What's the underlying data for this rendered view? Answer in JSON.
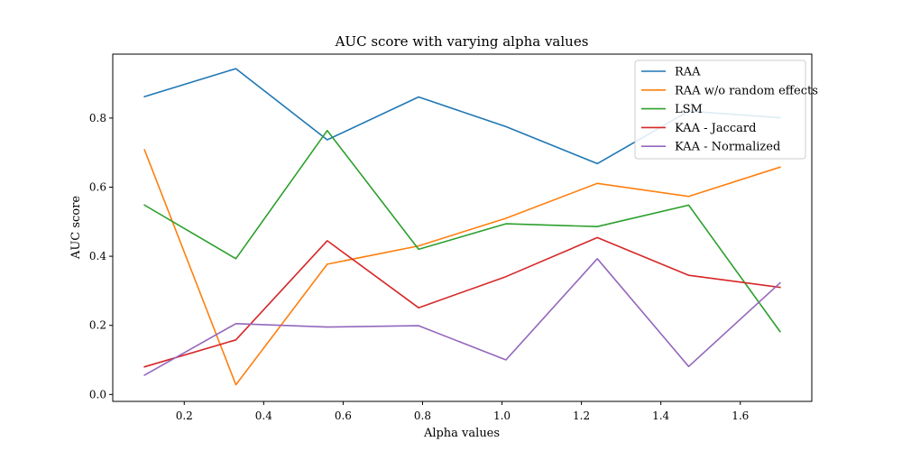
{
  "chart_data": {
    "type": "line",
    "title": "AUC score with varying alpha values",
    "xlabel": "Alpha values",
    "ylabel": "AUC score",
    "xlim": [
      0.02,
      1.78
    ],
    "ylim": [
      -0.02,
      0.985
    ],
    "xticks": [
      0.2,
      0.4,
      0.6,
      0.8,
      1.0,
      1.2,
      1.4,
      1.6
    ],
    "xtick_labels": [
      "0.2",
      "0.4",
      "0.6",
      "0.8",
      "1.0",
      "1.2",
      "1.4",
      "1.6"
    ],
    "yticks": [
      0.0,
      0.2,
      0.4,
      0.6,
      0.8
    ],
    "ytick_labels": [
      "0.0",
      "0.2",
      "0.4",
      "0.6",
      "0.8"
    ],
    "grid": false,
    "legend_position": "top-right",
    "x": [
      0.1,
      0.33,
      0.56,
      0.79,
      1.01,
      1.24,
      1.47,
      1.7
    ],
    "series": [
      {
        "name": "RAA",
        "color": "#1f77b4",
        "values": [
          0.862,
          0.943,
          0.737,
          0.861,
          0.775,
          0.668,
          0.82,
          0.801
        ]
      },
      {
        "name": "RAA w/o random effects",
        "color": "#ff7f0e",
        "values": [
          0.708,
          0.028,
          0.377,
          0.43,
          0.51,
          0.611,
          0.573,
          0.658
        ]
      },
      {
        "name": "LSM",
        "color": "#2ca02c",
        "values": [
          0.548,
          0.393,
          0.764,
          0.42,
          0.494,
          0.486,
          0.548,
          0.182
        ]
      },
      {
        "name": "KAA - Jaccard",
        "color": "#d62728",
        "values": [
          0.08,
          0.158,
          0.445,
          0.251,
          0.341,
          0.454,
          0.345,
          0.31
        ]
      },
      {
        "name": "KAA - Normalized",
        "color": "#9467bd",
        "values": [
          0.056,
          0.205,
          0.195,
          0.199,
          0.1,
          0.393,
          0.081,
          0.323
        ]
      }
    ]
  }
}
